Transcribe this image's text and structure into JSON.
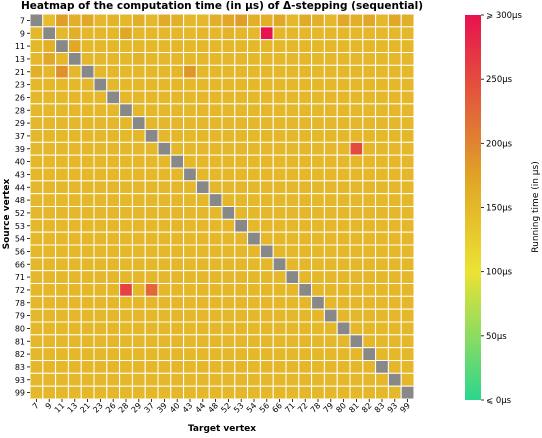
{
  "chart_data": {
    "type": "heatmap",
    "title": "Heatmap of the computation time (in μs) of Δ-stepping (sequential)",
    "xlabel": "Target vertex",
    "ylabel": "Source vertex",
    "colorbar_label": "Running time (in μs)",
    "vertices": [
      "7",
      "9",
      "11",
      "13",
      "21",
      "23",
      "26",
      "28",
      "29",
      "37",
      "39",
      "40",
      "43",
      "44",
      "48",
      "52",
      "53",
      "54",
      "56",
      "66",
      "71",
      "72",
      "78",
      "79",
      "80",
      "81",
      "82",
      "83",
      "93",
      "99"
    ],
    "value_range": [
      0,
      300
    ],
    "colorbar_ticks": [
      {
        "value": 300,
        "label": "⩾ 300μs"
      },
      {
        "value": 250,
        "label": "250μs"
      },
      {
        "value": 200,
        "label": "200μs"
      },
      {
        "value": 150,
        "label": "150μs"
      },
      {
        "value": 100,
        "label": "100μs"
      },
      {
        "value": 50,
        "label": "50μs"
      },
      {
        "value": 0,
        "label": "⩽ 0μs"
      }
    ],
    "colormap": [
      {
        "value": 0,
        "color": "#2bd68e"
      },
      {
        "value": 100,
        "color": "#ece234"
      },
      {
        "value": 175,
        "color": "#e0a325"
      },
      {
        "value": 200,
        "color": "#e08430"
      },
      {
        "value": 300,
        "color": "#e8124e"
      }
    ],
    "diagonal_color": "#888888",
    "grid_line_color": "#ffffff",
    "values": [
      [
        null,
        145,
        180,
        160,
        170,
        150,
        155,
        150,
        160,
        150,
        165,
        160,
        150,
        150,
        160,
        170,
        180,
        160,
        160,
        170,
        150,
        165,
        160,
        150,
        170,
        160,
        170,
        150,
        170,
        160
      ],
      [
        150,
        null,
        150,
        160,
        150,
        150,
        150,
        170,
        150,
        150,
        150,
        150,
        150,
        150,
        150,
        155,
        150,
        150,
        300,
        150,
        150,
        150,
        150,
        150,
        150,
        150,
        150,
        150,
        150,
        150
      ],
      [
        150,
        160,
        null,
        170,
        150,
        150,
        150,
        150,
        150,
        150,
        150,
        150,
        150,
        150,
        150,
        150,
        150,
        150,
        150,
        150,
        150,
        150,
        150,
        150,
        150,
        150,
        150,
        150,
        150,
        150
      ],
      [
        150,
        170,
        150,
        null,
        150,
        150,
        150,
        150,
        155,
        150,
        150,
        150,
        150,
        150,
        150,
        150,
        150,
        150,
        150,
        150,
        150,
        150,
        150,
        150,
        150,
        150,
        150,
        150,
        150,
        150
      ],
      [
        160,
        150,
        190,
        150,
        null,
        150,
        150,
        150,
        150,
        150,
        150,
        150,
        185,
        150,
        150,
        150,
        150,
        150,
        150,
        150,
        150,
        150,
        150,
        150,
        150,
        150,
        150,
        150,
        150,
        150
      ],
      [
        150,
        150,
        150,
        150,
        150,
        null,
        150,
        150,
        150,
        150,
        150,
        150,
        150,
        150,
        150,
        150,
        150,
        150,
        150,
        150,
        150,
        150,
        150,
        150,
        150,
        150,
        150,
        150,
        150,
        150
      ],
      [
        150,
        150,
        150,
        150,
        150,
        150,
        null,
        150,
        150,
        150,
        150,
        150,
        150,
        150,
        150,
        150,
        150,
        150,
        150,
        150,
        150,
        150,
        150,
        150,
        150,
        150,
        150,
        150,
        150,
        150
      ],
      [
        150,
        150,
        150,
        150,
        150,
        150,
        150,
        null,
        150,
        150,
        150,
        150,
        150,
        150,
        150,
        150,
        150,
        150,
        150,
        150,
        150,
        150,
        150,
        150,
        150,
        150,
        150,
        150,
        150,
        150
      ],
      [
        150,
        150,
        150,
        150,
        150,
        150,
        150,
        150,
        null,
        150,
        150,
        150,
        150,
        150,
        150,
        150,
        150,
        150,
        150,
        150,
        150,
        150,
        150,
        150,
        150,
        150,
        150,
        150,
        150,
        150
      ],
      [
        150,
        150,
        150,
        150,
        150,
        150,
        150,
        150,
        150,
        null,
        150,
        150,
        150,
        150,
        150,
        150,
        150,
        150,
        150,
        150,
        150,
        150,
        150,
        150,
        150,
        150,
        150,
        150,
        150,
        150
      ],
      [
        150,
        150,
        150,
        150,
        150,
        150,
        150,
        150,
        150,
        150,
        null,
        150,
        150,
        150,
        150,
        150,
        150,
        150,
        150,
        150,
        150,
        150,
        150,
        150,
        150,
        250,
        150,
        150,
        150,
        150
      ],
      [
        150,
        150,
        150,
        150,
        150,
        150,
        150,
        150,
        150,
        150,
        150,
        null,
        150,
        150,
        150,
        150,
        150,
        150,
        150,
        150,
        150,
        150,
        150,
        150,
        150,
        150,
        150,
        150,
        150,
        150
      ],
      [
        150,
        150,
        150,
        150,
        150,
        150,
        150,
        150,
        150,
        150,
        150,
        150,
        null,
        150,
        150,
        150,
        150,
        150,
        150,
        150,
        150,
        150,
        150,
        150,
        150,
        150,
        150,
        150,
        150,
        150
      ],
      [
        150,
        150,
        150,
        150,
        150,
        150,
        150,
        150,
        150,
        150,
        150,
        150,
        150,
        null,
        150,
        150,
        150,
        150,
        150,
        150,
        150,
        150,
        150,
        150,
        150,
        150,
        150,
        150,
        150,
        150
      ],
      [
        150,
        150,
        150,
        150,
        150,
        150,
        150,
        150,
        150,
        150,
        150,
        150,
        150,
        150,
        null,
        150,
        150,
        150,
        150,
        150,
        150,
        150,
        150,
        150,
        150,
        150,
        150,
        150,
        150,
        150
      ],
      [
        150,
        150,
        150,
        150,
        150,
        150,
        150,
        150,
        150,
        150,
        150,
        150,
        150,
        150,
        150,
        null,
        150,
        150,
        150,
        150,
        150,
        150,
        150,
        150,
        150,
        150,
        150,
        150,
        150,
        150
      ],
      [
        150,
        150,
        150,
        150,
        150,
        150,
        150,
        150,
        150,
        150,
        150,
        150,
        150,
        150,
        150,
        150,
        null,
        150,
        150,
        150,
        150,
        150,
        150,
        150,
        150,
        150,
        150,
        150,
        150,
        150
      ],
      [
        150,
        150,
        150,
        150,
        150,
        150,
        150,
        150,
        150,
        150,
        150,
        150,
        150,
        150,
        150,
        150,
        150,
        null,
        150,
        150,
        150,
        150,
        150,
        150,
        150,
        150,
        150,
        150,
        150,
        150
      ],
      [
        150,
        150,
        150,
        150,
        150,
        150,
        150,
        150,
        150,
        150,
        150,
        150,
        150,
        150,
        150,
        150,
        150,
        150,
        null,
        150,
        150,
        150,
        150,
        150,
        150,
        150,
        150,
        150,
        150,
        150
      ],
      [
        150,
        150,
        150,
        150,
        150,
        150,
        150,
        150,
        150,
        150,
        150,
        150,
        150,
        150,
        150,
        150,
        150,
        150,
        150,
        null,
        150,
        150,
        150,
        150,
        150,
        150,
        150,
        150,
        150,
        150
      ],
      [
        150,
        150,
        150,
        150,
        150,
        150,
        150,
        150,
        150,
        150,
        150,
        150,
        150,
        150,
        150,
        150,
        150,
        150,
        150,
        150,
        null,
        150,
        150,
        150,
        150,
        150,
        150,
        150,
        150,
        150
      ],
      [
        150,
        150,
        150,
        150,
        150,
        150,
        150,
        260,
        150,
        225,
        150,
        150,
        150,
        150,
        150,
        150,
        150,
        150,
        150,
        150,
        150,
        null,
        150,
        150,
        150,
        150,
        150,
        150,
        150,
        150
      ],
      [
        150,
        150,
        150,
        150,
        150,
        150,
        150,
        150,
        150,
        150,
        150,
        150,
        150,
        150,
        150,
        150,
        150,
        150,
        150,
        150,
        150,
        150,
        null,
        150,
        150,
        150,
        150,
        150,
        150,
        150
      ],
      [
        150,
        150,
        150,
        150,
        150,
        150,
        150,
        150,
        150,
        150,
        150,
        150,
        150,
        150,
        150,
        150,
        150,
        150,
        150,
        150,
        150,
        150,
        150,
        null,
        150,
        150,
        150,
        150,
        150,
        150
      ],
      [
        150,
        150,
        150,
        150,
        150,
        150,
        150,
        150,
        150,
        150,
        150,
        150,
        150,
        150,
        150,
        150,
        150,
        150,
        150,
        150,
        150,
        150,
        150,
        150,
        null,
        150,
        150,
        150,
        150,
        150
      ],
      [
        150,
        150,
        150,
        150,
        150,
        150,
        150,
        150,
        150,
        150,
        150,
        150,
        150,
        150,
        150,
        150,
        150,
        150,
        150,
        150,
        150,
        150,
        150,
        150,
        150,
        null,
        150,
        150,
        150,
        150
      ],
      [
        150,
        150,
        150,
        150,
        150,
        150,
        150,
        150,
        150,
        150,
        150,
        150,
        150,
        150,
        150,
        150,
        150,
        150,
        150,
        150,
        150,
        150,
        150,
        150,
        150,
        150,
        null,
        150,
        150,
        150
      ],
      [
        150,
        150,
        150,
        150,
        150,
        150,
        150,
        150,
        150,
        150,
        150,
        150,
        150,
        150,
        150,
        150,
        150,
        150,
        150,
        150,
        150,
        150,
        150,
        150,
        150,
        150,
        150,
        null,
        150,
        150
      ],
      [
        150,
        150,
        150,
        150,
        150,
        150,
        150,
        150,
        150,
        150,
        150,
        150,
        150,
        150,
        150,
        150,
        150,
        150,
        150,
        150,
        150,
        150,
        150,
        150,
        150,
        150,
        150,
        150,
        null,
        150
      ],
      [
        150,
        150,
        150,
        150,
        150,
        150,
        150,
        150,
        150,
        150,
        150,
        150,
        150,
        150,
        150,
        150,
        150,
        150,
        150,
        150,
        150,
        150,
        150,
        150,
        150,
        150,
        150,
        150,
        150,
        null
      ]
    ]
  }
}
